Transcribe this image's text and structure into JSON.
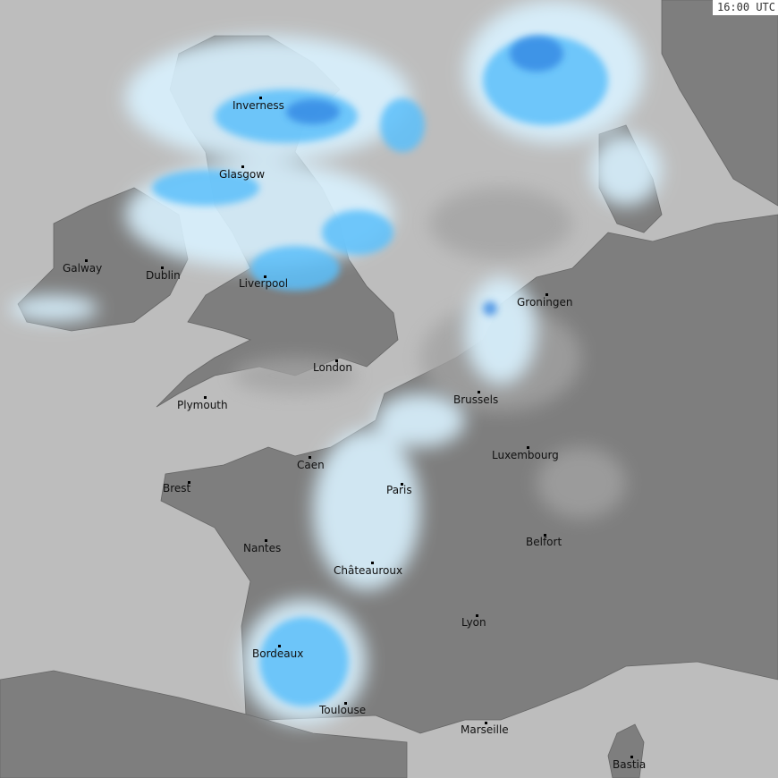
{
  "timestamp": "16:00 UTC",
  "colors": {
    "sea": "#bdbdbd",
    "land": "#7e7e7e",
    "land_light": "#a3a3a3",
    "precip_light": "#d9f2ff",
    "precip_mid": "#5cc0fb",
    "precip_heavy": "#2a7fe0"
  },
  "cities": [
    "Inverness",
    "Glasgow",
    "Galway",
    "Dublin",
    "Liverpool",
    "London",
    "Plymouth",
    "Groningen",
    "Brussels",
    "Luxembourg",
    "Caen",
    "Brest",
    "Paris",
    "Nantes",
    "Belfort",
    "Châteauroux",
    "Lyon",
    "Bordeaux",
    "Toulouse",
    "Marseille",
    "Bastia"
  ]
}
